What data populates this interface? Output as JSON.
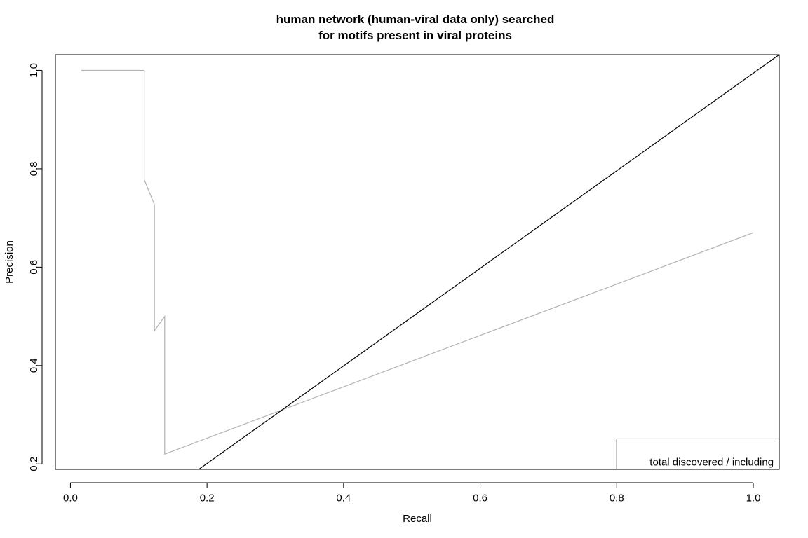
{
  "chart_data": {
    "type": "line",
    "title_lines": [
      "human network (human-viral data only) searched",
      "for motifs present in viral proteins"
    ],
    "xlabel": "Recall",
    "ylabel": "Precision",
    "xlim": [
      -0.022,
      1.038
    ],
    "ylim": [
      0.189,
      1.032
    ],
    "x_ticks": [
      "0.0",
      "0.2",
      "0.4",
      "0.6",
      "0.8",
      "1.0"
    ],
    "y_ticks": [
      "0.2",
      "0.4",
      "0.6",
      "0.8",
      "1.0"
    ],
    "grid": false,
    "series": [
      {
        "color": "#b3b3b3",
        "points": [
          [
            0.016,
            1.0
          ],
          [
            0.108,
            1.0
          ],
          [
            0.108,
            0.778
          ],
          [
            0.123,
            0.727
          ],
          [
            0.123,
            0.471
          ],
          [
            0.138,
            0.5
          ],
          [
            0.138,
            0.22
          ],
          [
            1.0,
            0.67
          ]
        ]
      },
      {
        "color": "#000000",
        "points": [
          [
            0.188,
            0.189
          ],
          [
            1.038,
            1.032
          ]
        ]
      }
    ],
    "legend": {
      "position": "bottom-right",
      "text": "total discovered / including"
    }
  }
}
